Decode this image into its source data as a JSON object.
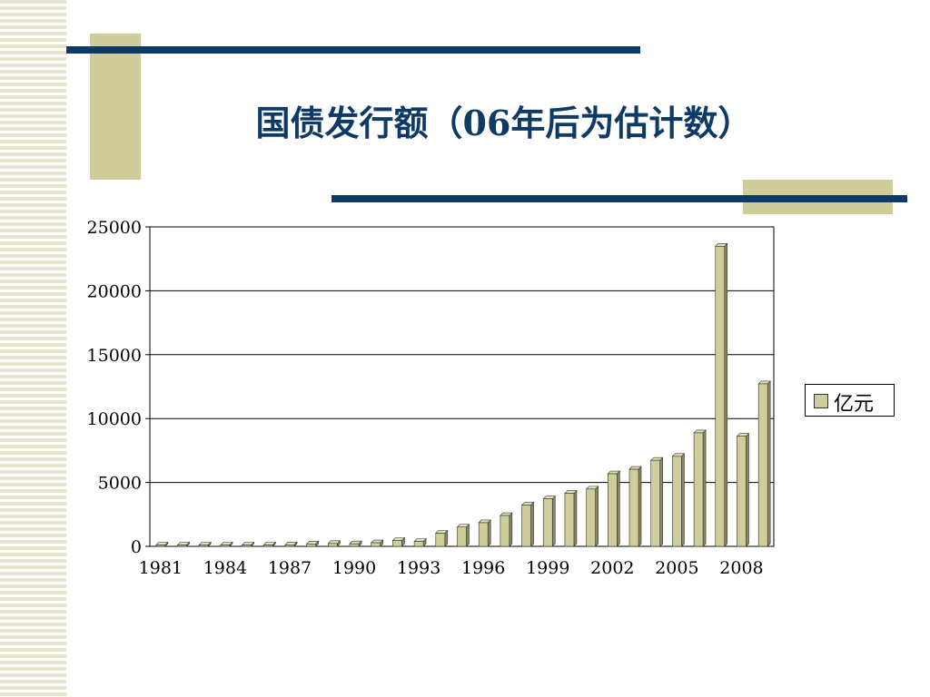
{
  "title": "国债发行额（06年后为估计数）",
  "colors": {
    "navy": "#0d3a66",
    "tan": "#cfcd9a",
    "bar_face": "#cfcd9a",
    "bar_side": "#8a8860",
    "bar_top": "#e2e0b8"
  },
  "chart_data": {
    "type": "bar",
    "categories": [
      "1981",
      "1982",
      "1983",
      "1984",
      "1985",
      "1986",
      "1987",
      "1988",
      "1989",
      "1990",
      "1991",
      "1992",
      "1993",
      "1994",
      "1995",
      "1996",
      "1997",
      "1998",
      "1999",
      "2000",
      "2001",
      "2002",
      "2003",
      "2004",
      "2005",
      "2006",
      "2007",
      "2008",
      "2009"
    ],
    "series": [
      {
        "name": "亿元",
        "values": [
          49,
          44,
          42,
          42,
          61,
          63,
          117,
          189,
          224,
          197,
          281,
          461,
          381,
          1029,
          1510,
          1848,
          2412,
          3229,
          3715,
          4153,
          4484,
          5679,
          6029,
          6734,
          7042,
          8883,
          23483,
          8615,
          12717
        ]
      }
    ],
    "x_tick_labels": [
      "1981",
      "1984",
      "1987",
      "1990",
      "1993",
      "1996",
      "1999",
      "2002",
      "2005",
      "2008"
    ],
    "y_ticks": [
      "0",
      "5000",
      "10000",
      "15000",
      "20000",
      "25000"
    ],
    "ylim": [
      0,
      25000
    ],
    "legend_position": "right",
    "grid": true
  }
}
